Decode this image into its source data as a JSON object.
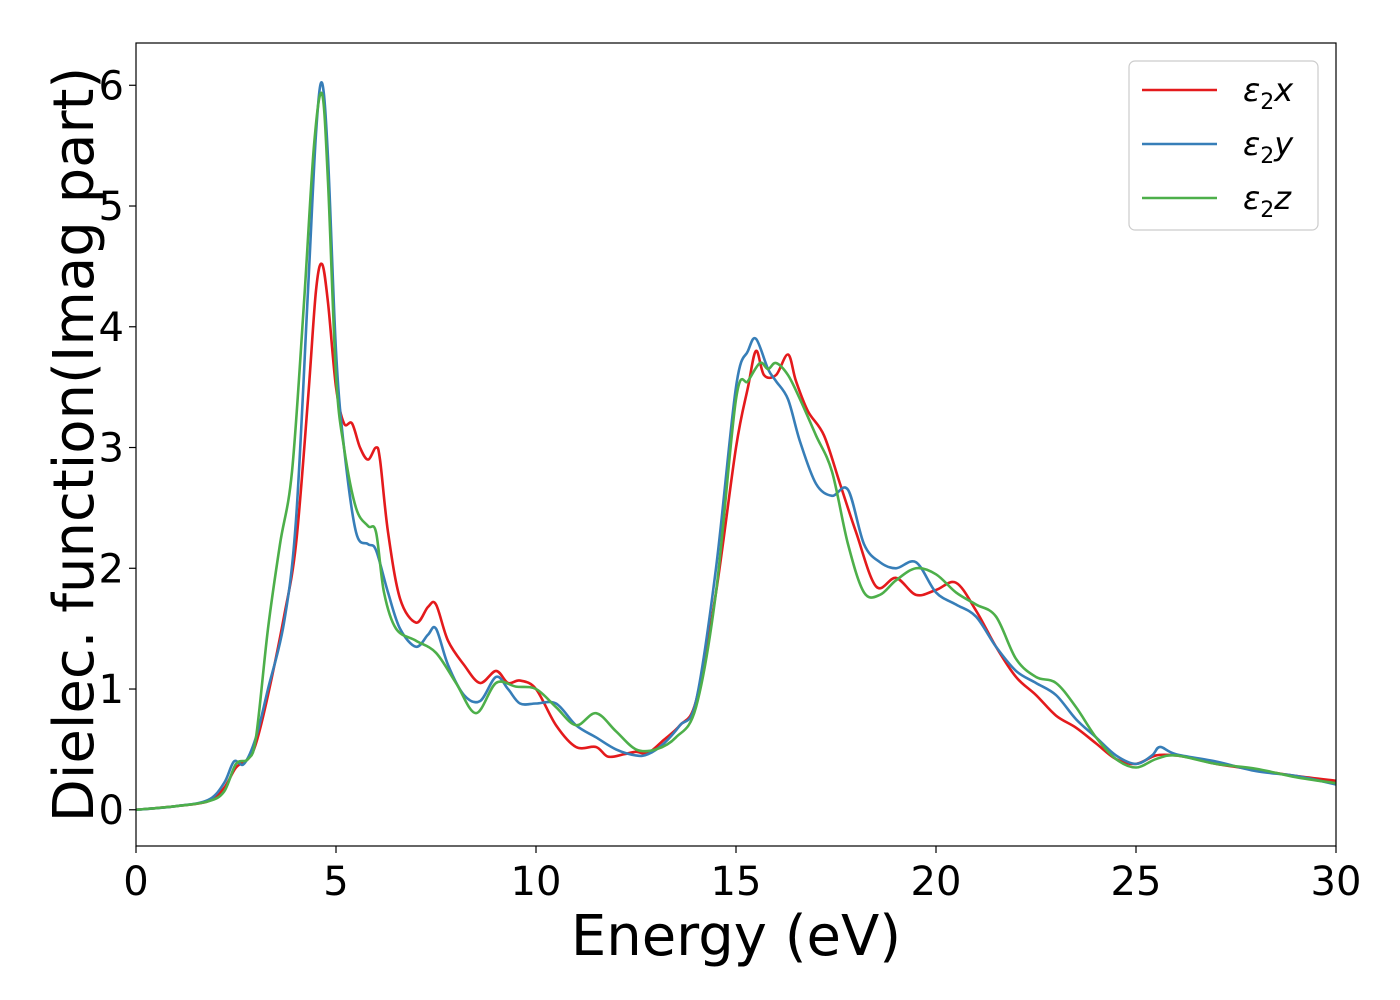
{
  "chart_data": {
    "type": "line",
    "title": "",
    "xlabel": "Energy (eV)",
    "ylabel": "Dielec. function(Imag part)",
    "xlim": [
      0,
      30
    ],
    "ylim": [
      -0.3,
      6.35
    ],
    "xticks": [
      0,
      5,
      10,
      15,
      20,
      25,
      30
    ],
    "xtick_labels": [
      "0",
      "5",
      "10",
      "15",
      "20",
      "25",
      "30"
    ],
    "yticks": [
      0,
      1,
      2,
      3,
      4,
      5,
      6
    ],
    "ytick_labels": [
      "0",
      "1",
      "2",
      "3",
      "4",
      "5",
      "6"
    ],
    "grid": false,
    "legend_position": "top-right",
    "series": [
      {
        "name": "ε₂x",
        "legend_main": "ε",
        "legend_sub": "2",
        "legend_suffix": "x",
        "color": "#e41a1c",
        "x": [
          0,
          1,
          1.8,
          2.2,
          2.5,
          2.8,
          3.0,
          3.3,
          3.7,
          4.0,
          4.3,
          4.5,
          4.65,
          4.8,
          5.0,
          5.2,
          5.4,
          5.6,
          5.8,
          6.0,
          6.1,
          6.3,
          6.6,
          7.0,
          7.3,
          7.5,
          7.8,
          8.2,
          8.6,
          9.0,
          9.3,
          9.6,
          10.0,
          10.5,
          11.0,
          11.5,
          11.8,
          12.2,
          12.5,
          12.8,
          13.2,
          13.6,
          14.0,
          14.5,
          15.0,
          15.3,
          15.5,
          15.7,
          16.0,
          16.3,
          16.5,
          16.8,
          17.2,
          17.6,
          18.0,
          18.5,
          19.0,
          19.5,
          20.0,
          20.5,
          21.0,
          21.5,
          22.0,
          22.5,
          23.0,
          23.5,
          24.0,
          24.5,
          25.0,
          25.5,
          26.0,
          26.5,
          27.0,
          28.0,
          29.0,
          30.0
        ],
        "y": [
          0,
          0.03,
          0.07,
          0.18,
          0.35,
          0.42,
          0.55,
          0.95,
          1.6,
          2.2,
          3.4,
          4.3,
          4.52,
          4.2,
          3.5,
          3.2,
          3.2,
          3.0,
          2.9,
          3.0,
          2.9,
          2.3,
          1.75,
          1.55,
          1.68,
          1.7,
          1.4,
          1.2,
          1.05,
          1.15,
          1.05,
          1.07,
          1.0,
          0.7,
          0.52,
          0.52,
          0.44,
          0.46,
          0.48,
          0.47,
          0.58,
          0.7,
          0.9,
          1.8,
          3.0,
          3.5,
          3.8,
          3.6,
          3.6,
          3.77,
          3.55,
          3.3,
          3.1,
          2.7,
          2.3,
          1.85,
          1.92,
          1.78,
          1.82,
          1.88,
          1.65,
          1.35,
          1.1,
          0.95,
          0.78,
          0.68,
          0.55,
          0.42,
          0.38,
          0.45,
          0.45,
          0.42,
          0.38,
          0.33,
          0.28,
          0.24
        ]
      },
      {
        "name": "ε₂y",
        "legend_main": "ε",
        "legend_sub": "2",
        "legend_suffix": "y",
        "color": "#377eb8",
        "x": [
          0,
          1,
          1.8,
          2.2,
          2.45,
          2.7,
          3.0,
          3.3,
          3.7,
          4.0,
          4.3,
          4.5,
          4.65,
          4.8,
          5.0,
          5.2,
          5.5,
          5.8,
          6.0,
          6.3,
          6.6,
          7.0,
          7.3,
          7.5,
          7.8,
          8.2,
          8.6,
          9.0,
          9.3,
          9.6,
          10.0,
          10.5,
          11.0,
          11.5,
          12.0,
          12.5,
          12.8,
          13.2,
          13.6,
          14.0,
          14.5,
          15.0,
          15.3,
          15.5,
          15.8,
          16.0,
          16.3,
          16.6,
          17.0,
          17.4,
          17.8,
          18.2,
          18.6,
          19.0,
          19.5,
          20.0,
          20.5,
          21.0,
          21.5,
          22.0,
          22.5,
          23.0,
          23.5,
          24.0,
          24.5,
          25.0,
          25.4,
          25.6,
          26.0,
          27.0,
          28.0,
          29.0,
          30.0
        ],
        "y": [
          0,
          0.03,
          0.08,
          0.22,
          0.4,
          0.38,
          0.6,
          1.0,
          1.55,
          2.4,
          4.3,
          5.6,
          6.02,
          5.4,
          3.8,
          3.0,
          2.3,
          2.2,
          2.15,
          1.8,
          1.5,
          1.35,
          1.45,
          1.5,
          1.2,
          0.95,
          0.9,
          1.1,
          1.0,
          0.88,
          0.88,
          0.88,
          0.7,
          0.6,
          0.5,
          0.45,
          0.46,
          0.55,
          0.7,
          0.9,
          2.0,
          3.5,
          3.8,
          3.9,
          3.65,
          3.55,
          3.4,
          3.05,
          2.7,
          2.6,
          2.65,
          2.2,
          2.05,
          2.0,
          2.05,
          1.8,
          1.7,
          1.6,
          1.35,
          1.15,
          1.05,
          0.95,
          0.75,
          0.6,
          0.45,
          0.38,
          0.45,
          0.52,
          0.46,
          0.4,
          0.32,
          0.28,
          0.21
        ]
      },
      {
        "name": "ε₂z",
        "legend_main": "ε",
        "legend_sub": "2",
        "legend_suffix": "z",
        "color": "#4daf4a",
        "x": [
          0,
          1,
          1.8,
          2.2,
          2.5,
          2.8,
          3.0,
          3.3,
          3.6,
          3.9,
          4.2,
          4.45,
          4.65,
          4.8,
          5.0,
          5.2,
          5.5,
          5.8,
          6.0,
          6.2,
          6.5,
          7.0,
          7.5,
          8.0,
          8.5,
          9.0,
          9.5,
          10.0,
          10.5,
          11.0,
          11.5,
          12.0,
          12.5,
          13.0,
          13.5,
          14.0,
          14.5,
          15.0,
          15.3,
          15.6,
          15.8,
          16.0,
          16.3,
          16.6,
          17.0,
          17.4,
          17.8,
          18.2,
          18.6,
          19.0,
          19.5,
          20.0,
          20.5,
          21.0,
          21.5,
          22.0,
          22.5,
          23.0,
          23.5,
          24.0,
          24.5,
          25.0,
          25.5,
          26.0,
          27.0,
          28.0,
          29.0,
          30.0
        ],
        "y": [
          0,
          0.03,
          0.07,
          0.15,
          0.38,
          0.42,
          0.6,
          1.5,
          2.2,
          2.8,
          4.2,
          5.5,
          5.93,
          5.2,
          3.6,
          3.0,
          2.5,
          2.35,
          2.3,
          1.8,
          1.5,
          1.4,
          1.3,
          1.05,
          0.8,
          1.05,
          1.02,
          1.0,
          0.85,
          0.7,
          0.8,
          0.65,
          0.5,
          0.5,
          0.6,
          0.85,
          1.8,
          3.4,
          3.55,
          3.7,
          3.65,
          3.7,
          3.6,
          3.4,
          3.1,
          2.8,
          2.2,
          1.8,
          1.78,
          1.9,
          2.0,
          1.95,
          1.8,
          1.7,
          1.6,
          1.25,
          1.1,
          1.05,
          0.85,
          0.6,
          0.42,
          0.35,
          0.42,
          0.45,
          0.38,
          0.34,
          0.27,
          0.22
        ]
      }
    ]
  }
}
